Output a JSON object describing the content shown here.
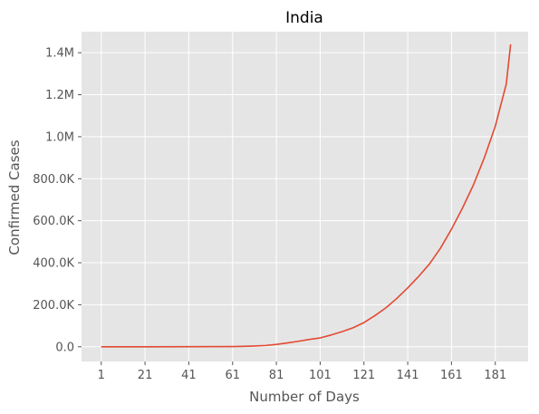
{
  "chart_data": {
    "type": "line",
    "title": "India",
    "xlabel": "Number of Days",
    "ylabel": "Confirmed Cases",
    "xlim": [
      -8,
      196
    ],
    "ylim": [
      -70000,
      1500000
    ],
    "grid": true,
    "x_ticks": [
      1,
      21,
      41,
      61,
      81,
      101,
      121,
      141,
      161,
      181
    ],
    "x_tick_labels": [
      "1",
      "21",
      "41",
      "61",
      "81",
      "101",
      "121",
      "141",
      "161",
      "181"
    ],
    "y_ticks": [
      0,
      200000,
      400000,
      600000,
      800000,
      1000000,
      1200000,
      1400000
    ],
    "y_tick_labels": [
      "0.0",
      "200.0K",
      "400.0K",
      "600.0K",
      "800.0K",
      "1.0M",
      "1.2M",
      "1.4M"
    ],
    "series": [
      {
        "name": "India",
        "color": "#e24a33",
        "x": [
          1,
          21,
          41,
          61,
          66,
          71,
          76,
          81,
          86,
          91,
          96,
          101,
          106,
          111,
          116,
          121,
          126,
          131,
          136,
          141,
          146,
          151,
          156,
          161,
          166,
          171,
          176,
          181,
          186,
          188
        ],
        "y": [
          0,
          0,
          200,
          1000,
          2000,
          3500,
          6000,
          11000,
          18000,
          26000,
          35000,
          42000,
          56000,
          72000,
          90000,
          115000,
          148000,
          185000,
          230000,
          280000,
          335000,
          395000,
          470000,
          560000,
          660000,
          770000,
          900000,
          1050000,
          1250000,
          1440000
        ]
      }
    ],
    "background": "#e5e5e5"
  }
}
